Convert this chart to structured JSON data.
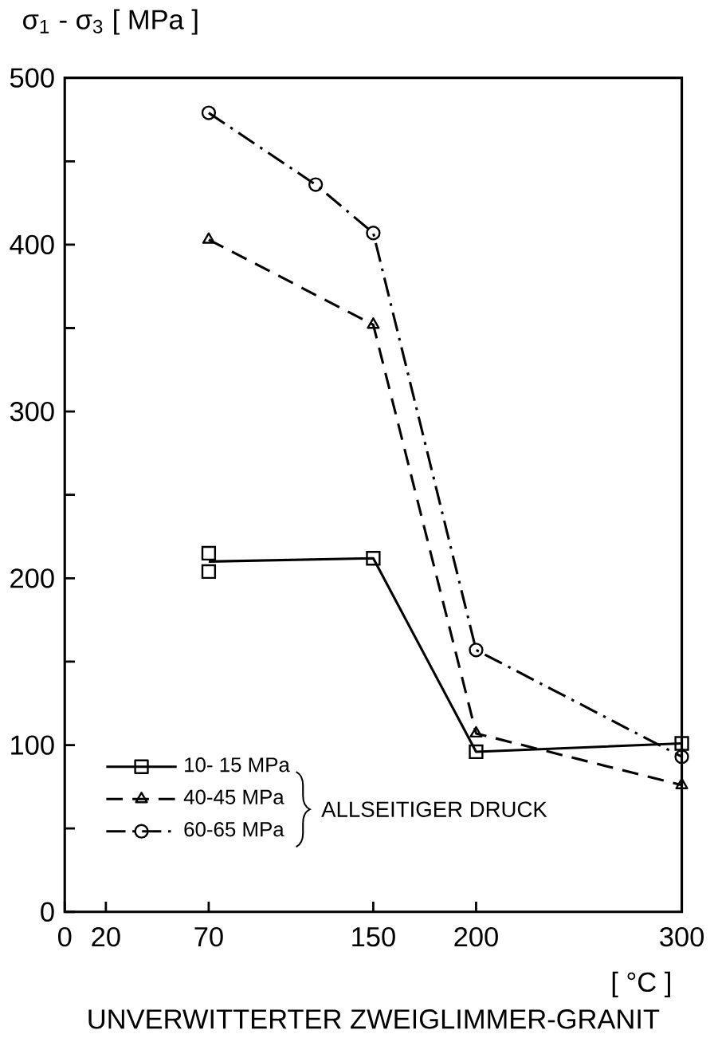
{
  "chart_data": {
    "type": "line",
    "title": "UNVERWITTERTER ZWEIGLIMMER-GRANIT",
    "xlabel": "[ °C ]",
    "ylabel": "σ$_{1}$ - σ$_{3}$ [ MPa ]",
    "legend_title": "ALLSEITIGER DRUCK",
    "xlim": [
      0,
      300
    ],
    "ylim": [
      0,
      500
    ],
    "xticks": [
      0,
      20,
      70,
      150,
      200,
      300
    ],
    "yticks": [
      0,
      {
        "value": 50,
        "label": null
      },
      100,
      {
        "value": 150,
        "label": null
      },
      200,
      {
        "value": 250,
        "label": null
      },
      300,
      {
        "value": 350,
        "label": null
      },
      400,
      {
        "value": 450,
        "label": null
      },
      500
    ],
    "legend": "bottom left",
    "grid": false,
    "series": [
      {
        "name": "10- 15 MPa",
        "color": "#000000",
        "line_style": "solid",
        "marker": "none",
        "x": [
          70,
          150,
          200,
          300
        ],
        "values": [
          210,
          212,
          96,
          101
        ]
      },
      {
        "name": "40-45 MPa",
        "color": "#000000",
        "line_style": "dashed",
        "marker": "triangle",
        "x": [
          70,
          150,
          200,
          300
        ],
        "values": [
          403,
          352,
          107,
          76
        ]
      },
      {
        "name": "60-65 MPa",
        "color": "#000000",
        "line_style": "dashdot",
        "marker": "circle",
        "x": [
          70,
          122,
          150,
          200,
          300
        ],
        "values": [
          479,
          436,
          407,
          157,
          93
        ]
      },
      {
        "type": "scatter",
        "color": "#000000",
        "marker": "square",
        "x": [
          70,
          70,
          150,
          200,
          300
        ],
        "values": [
          215,
          204,
          212,
          96,
          101
        ]
      }
    ]
  }
}
